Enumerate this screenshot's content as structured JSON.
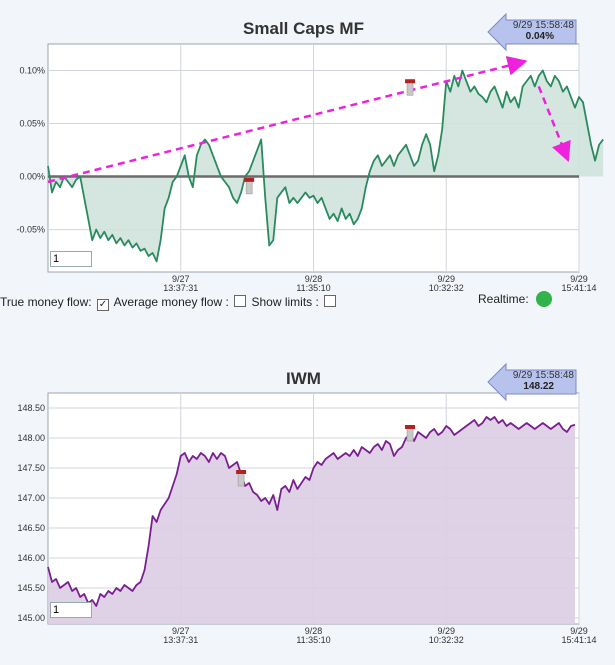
{
  "controls": {
    "true_money_flow": "True money flow:",
    "true_money_flow_checked": true,
    "average_money_flow": "Average money flow :",
    "show_limits": "Show limits :",
    "realtime": "Realtime:",
    "realtime_color": "#2fb34a"
  },
  "chart_data": [
    {
      "type": "line",
      "title": "Small Caps MF",
      "input_value": "1",
      "badge": {
        "timestamp": "9/29 15:58:48",
        "value": "0.04%"
      },
      "ylim": [
        -0.09,
        0.125
      ],
      "y_ticks": [
        0.1,
        0.05,
        0.0,
        -0.05
      ],
      "y_tick_labels": [
        "0.10%",
        "0.05%",
        "0.00%",
        "-0.05%"
      ],
      "x_ticks": [
        {
          "date": "9/27",
          "time": "13:37:31",
          "index": 33
        },
        {
          "date": "9/28",
          "time": "11:35:10",
          "index": 66
        },
        {
          "date": "9/29",
          "time": "10:32:32",
          "index": 99
        },
        {
          "date": "9/29",
          "time": "15:41:14",
          "index": 132
        }
      ],
      "color": "#2a8a5f",
      "fill": "#cfe3dc",
      "trend_color": "#ee22dd",
      "values": [
        0.01,
        -0.015,
        -0.005,
        -0.01,
        0.0,
        -0.005,
        -0.01,
        -0.003,
        0.0,
        -0.02,
        -0.04,
        -0.06,
        -0.05,
        -0.058,
        -0.052,
        -0.06,
        -0.055,
        -0.063,
        -0.058,
        -0.065,
        -0.06,
        -0.067,
        -0.063,
        -0.07,
        -0.068,
        -0.075,
        -0.072,
        -0.08,
        -0.06,
        -0.03,
        -0.02,
        -0.005,
        0.0,
        0.01,
        0.02,
        0.0,
        -0.01,
        0.02,
        0.03,
        0.035,
        0.03,
        0.02,
        0.01,
        0.0,
        -0.005,
        -0.01,
        -0.02,
        -0.025,
        -0.015,
        0.0,
        0.005,
        0.015,
        0.025,
        0.035,
        -0.02,
        -0.065,
        -0.06,
        -0.02,
        -0.015,
        -0.01,
        -0.025,
        -0.02,
        -0.025,
        -0.02,
        -0.015,
        -0.02,
        -0.018,
        -0.025,
        -0.02,
        -0.03,
        -0.04,
        -0.035,
        -0.042,
        -0.03,
        -0.04,
        -0.035,
        -0.045,
        -0.04,
        -0.03,
        -0.01,
        0.005,
        0.015,
        0.02,
        0.01,
        0.015,
        0.02,
        0.01,
        0.02,
        0.025,
        0.03,
        0.02,
        0.01,
        0.015,
        0.03,
        0.04,
        0.03,
        0.005,
        0.02,
        0.045,
        0.09,
        0.08,
        0.095,
        0.085,
        0.1,
        0.09,
        0.08,
        0.085,
        0.078,
        0.075,
        0.07,
        0.08,
        0.085,
        0.075,
        0.065,
        0.08,
        0.07,
        0.075,
        0.065,
        0.085,
        0.09,
        0.095,
        0.085,
        0.095,
        0.1,
        0.09,
        0.085,
        0.095,
        0.09,
        0.08,
        0.085,
        0.075,
        0.065,
        0.075,
        0.07,
        0.05,
        0.03,
        0.015,
        0.03,
        0.035
      ],
      "trend_up": {
        "from": [
          0,
          -0.005
        ],
        "to": [
          118,
          0.108
        ]
      },
      "trend_down": {
        "from": [
          122,
          0.085
        ],
        "to": [
          129,
          0.018
        ]
      },
      "flags": [
        {
          "index": 50,
          "value": -0.005
        },
        {
          "index": 90,
          "value": 0.088
        }
      ]
    },
    {
      "type": "area",
      "title": "IWM",
      "input_value": "1",
      "badge": {
        "timestamp": "9/29 15:58:48",
        "value": "148.22"
      },
      "ylim": [
        144.9,
        148.75
      ],
      "y_ticks": [
        148.5,
        148.0,
        147.5,
        147.0,
        146.5,
        146.0,
        145.5,
        145.0
      ],
      "y_tick_labels": [
        "148.50",
        "148.00",
        "147.50",
        "147.00",
        "146.50",
        "146.00",
        "145.50",
        "145.00"
      ],
      "x_ticks": [
        {
          "date": "9/27",
          "time": "13:37:31",
          "index": 33
        },
        {
          "date": "9/28",
          "time": "11:35:10",
          "index": 66
        },
        {
          "date": "9/29",
          "time": "10:32:32",
          "index": 99
        },
        {
          "date": "9/29",
          "time": "15:41:14",
          "index": 132
        }
      ],
      "color": "#7a1f8f",
      "fill": "#dccde3",
      "values": [
        145.85,
        145.6,
        145.65,
        145.5,
        145.55,
        145.6,
        145.45,
        145.5,
        145.35,
        145.4,
        145.25,
        145.3,
        145.2,
        145.4,
        145.35,
        145.45,
        145.4,
        145.5,
        145.45,
        145.55,
        145.5,
        145.45,
        145.55,
        145.6,
        145.8,
        146.2,
        146.7,
        146.6,
        146.8,
        146.9,
        147.0,
        147.2,
        147.4,
        147.7,
        147.75,
        147.6,
        147.7,
        147.65,
        147.75,
        147.7,
        147.6,
        147.75,
        147.65,
        147.75,
        147.7,
        147.5,
        147.55,
        147.6,
        147.4,
        147.2,
        147.25,
        147.1,
        147.05,
        146.95,
        147.0,
        146.9,
        147.05,
        146.8,
        147.15,
        147.2,
        147.1,
        147.3,
        147.15,
        147.25,
        147.35,
        147.3,
        147.5,
        147.6,
        147.55,
        147.65,
        147.7,
        147.75,
        147.65,
        147.7,
        147.75,
        147.7,
        147.8,
        147.7,
        147.85,
        147.8,
        147.75,
        147.85,
        147.9,
        147.8,
        147.95,
        147.9,
        147.7,
        147.8,
        147.85,
        148.0,
        148.05,
        147.95,
        148.1,
        148.05,
        148.0,
        148.1,
        148.15,
        148.05,
        148.1,
        148.2,
        148.15,
        148.05,
        148.1,
        148.15,
        148.2,
        148.25,
        148.3,
        148.2,
        148.25,
        148.35,
        148.3,
        148.35,
        148.25,
        148.3,
        148.2,
        148.25,
        148.2,
        148.15,
        148.2,
        148.25,
        148.2,
        148.15,
        148.2,
        148.25,
        148.2,
        148.15,
        148.2,
        148.25,
        148.15,
        148.1,
        148.2,
        148.22
      ],
      "flags": [
        {
          "index": 48,
          "value": 147.4
        },
        {
          "index": 90,
          "value": 148.15
        }
      ]
    }
  ]
}
